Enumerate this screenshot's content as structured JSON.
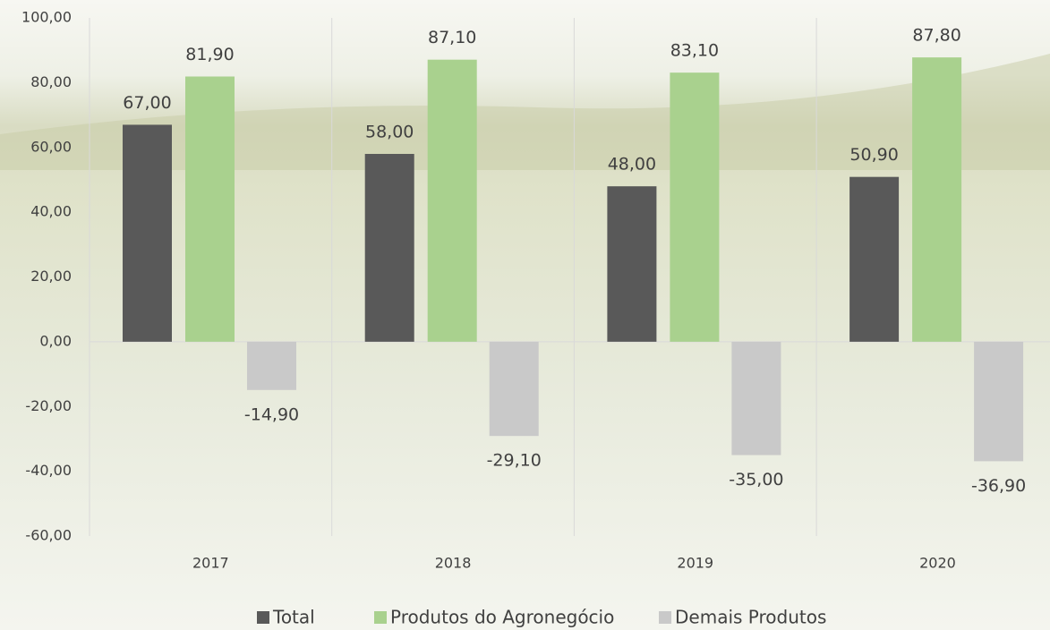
{
  "chart_data": {
    "type": "bar",
    "categories": [
      "2017",
      "2018",
      "2019",
      "2020"
    ],
    "series": [
      {
        "name": "Total",
        "color": "#595959",
        "values": [
          67.0,
          58.0,
          48.0,
          50.9
        ],
        "value_labels": [
          "67,00",
          "58,00",
          "48,00",
          "50,90"
        ]
      },
      {
        "name": "Produtos do Agronegócio",
        "color": "#a9d18e",
        "values": [
          81.9,
          87.1,
          83.1,
          87.8
        ],
        "value_labels": [
          "81,90",
          "87,10",
          "83,10",
          "87,80"
        ]
      },
      {
        "name": "Demais Produtos",
        "color": "#c9c9c9",
        "values": [
          -14.9,
          -29.1,
          -35.0,
          -36.9
        ],
        "value_labels": [
          "-14,90",
          "-29,10",
          "-35,00",
          "-36,90"
        ]
      }
    ],
    "ylim": [
      -60,
      100
    ],
    "yticks": [
      {
        "value": -60,
        "label": "-60,00"
      },
      {
        "value": -40,
        "label": "-40,00"
      },
      {
        "value": -20,
        "label": "-20,00"
      },
      {
        "value": 0,
        "label": "0,00"
      },
      {
        "value": 20,
        "label": "20,00"
      },
      {
        "value": 40,
        "label": "40,00"
      },
      {
        "value": 60,
        "label": "60,00"
      },
      {
        "value": 80,
        "label": "80,00"
      },
      {
        "value": 100,
        "label": "100,00"
      }
    ],
    "legend": "bottom"
  }
}
